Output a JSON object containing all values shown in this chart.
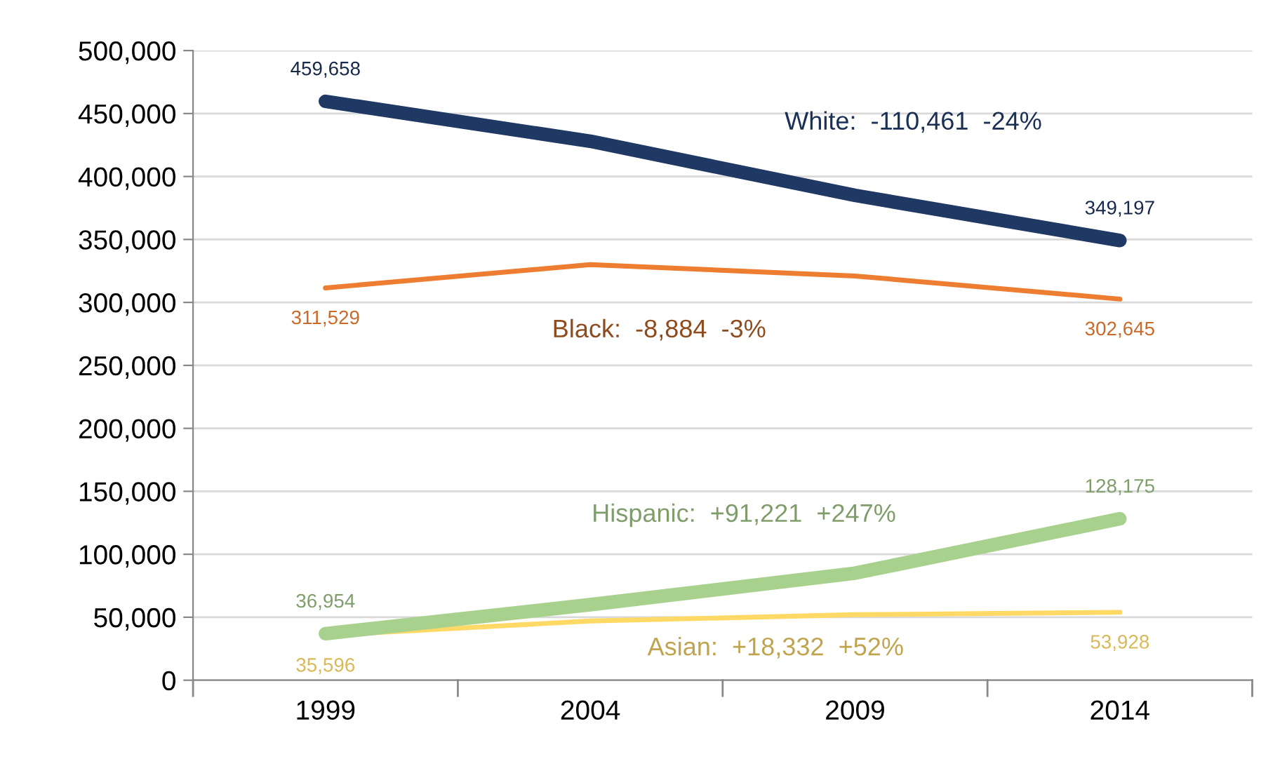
{
  "chart_data": {
    "type": "line",
    "categories": [
      "1999",
      "2004",
      "2009",
      "2014"
    ],
    "series": [
      {
        "color": "#1f3864",
        "values": [
          459658,
          428000,
          385000,
          349197
        ],
        "value_labels": [
          "459,658",
          null,
          null,
          "349,197"
        ]
      },
      {
        "color": "#ed7d31",
        "values": [
          311529,
          330000,
          321000,
          302645
        ],
        "value_labels": [
          "311,529",
          null,
          null,
          "302,645"
        ]
      },
      {
        "color": "#a9d18e",
        "values": [
          36954,
          60000,
          85000,
          128175
        ],
        "value_labels": [
          "36,954",
          null,
          null,
          "128,175"
        ]
      },
      {
        "color": "#ffd966",
        "values": [
          35596,
          47000,
          52000,
          53928
        ],
        "value_labels": [
          "35,596",
          null,
          null,
          "53,928"
        ]
      }
    ],
    "annotations": [
      "White:  -110,461  -24%",
      "Black:  -8,884  -3%",
      "Hispanic:  +91,221  +247%",
      "Asian:  +18,332  +52%"
    ],
    "ylim": [
      0,
      500000
    ],
    "yticks": [
      {
        "value": 0,
        "label": "0"
      },
      {
        "value": 50000,
        "label": "50,000"
      },
      {
        "value": 100000,
        "label": "100,000"
      },
      {
        "value": 150000,
        "label": "150,000"
      },
      {
        "value": 200000,
        "label": "200,000"
      },
      {
        "value": 250000,
        "label": "250,000"
      },
      {
        "value": 300000,
        "label": "300,000"
      },
      {
        "value": 350000,
        "label": "350,000"
      },
      {
        "value": 400000,
        "label": "400,000"
      },
      {
        "value": 450000,
        "label": "450,000"
      },
      {
        "value": 500000,
        "label": "500,000"
      }
    ],
    "grid": "y",
    "legend": false,
    "marker": "none",
    "line_style": "solid"
  }
}
